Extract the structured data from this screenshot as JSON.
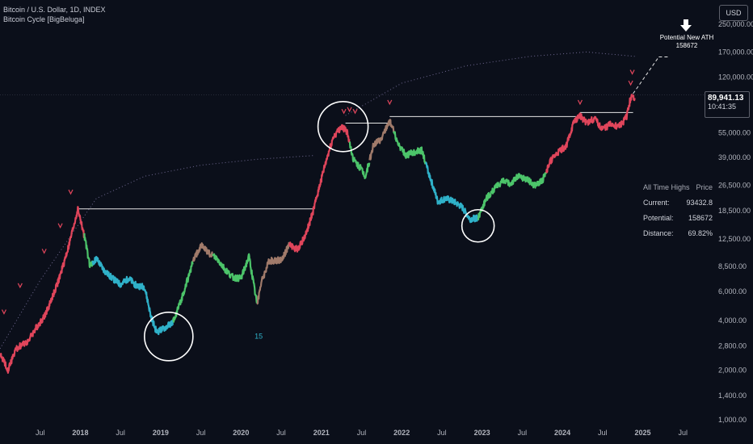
{
  "header": {
    "symbol_line": "Bitcoin / U.S. Dollar, 1D, INDEX",
    "indicator_line": "Bitcoin Cycle [BigBeluga]",
    "currency_button": "USD"
  },
  "price_tag": {
    "price": "89,941.13",
    "countdown": "10:41:35"
  },
  "potential_label": {
    "title": "Potential New ATH",
    "value": "158672"
  },
  "ath_table": {
    "header_left": "All Time Highs",
    "header_right": "Price",
    "rows": [
      {
        "label": "Current:",
        "value": "93432.8"
      },
      {
        "label": "Potential:",
        "value": "158672"
      },
      {
        "label": "Distance:",
        "value": "69.82%"
      }
    ]
  },
  "colors": {
    "background": "#0b0f1a",
    "bull_red": "#e0455b",
    "cool_blue": "#2fb1c9",
    "green": "#4cc46a",
    "neutral": "#a07a6a",
    "white_lines": "#e6e6e6",
    "dotted_curve": "#8a7fb0"
  },
  "chart_data": {
    "type": "line",
    "scale": "log",
    "ylim": [
      1000,
      300000
    ],
    "xlim": [
      2017.0,
      2025.9
    ],
    "y_ticks": [
      {
        "v": 250000,
        "label": "250,000.00"
      },
      {
        "v": 170000,
        "label": "170,000.00"
      },
      {
        "v": 120000,
        "label": "120,000.00"
      },
      {
        "v": 55000,
        "label": "55,000.00"
      },
      {
        "v": 39000,
        "label": "39,000.00"
      },
      {
        "v": 26500,
        "label": "26,500.00"
      },
      {
        "v": 18500,
        "label": "18,500.00"
      },
      {
        "v": 12500,
        "label": "12,500.00"
      },
      {
        "v": 8500,
        "label": "8,500.00"
      },
      {
        "v": 6000,
        "label": "6,000.00"
      },
      {
        "v": 4000,
        "label": "4,000.00"
      },
      {
        "v": 2800,
        "label": "2,800.00"
      },
      {
        "v": 2000,
        "label": "2,000.00"
      },
      {
        "v": 1400,
        "label": "1,400.00"
      },
      {
        "v": 1000,
        "label": "1,000.00"
      }
    ],
    "x_ticks": [
      {
        "t": 2017.5,
        "label": "Jul"
      },
      {
        "t": 2018.0,
        "label": "2018"
      },
      {
        "t": 2018.5,
        "label": "Jul"
      },
      {
        "t": 2019.0,
        "label": "2019"
      },
      {
        "t": 2019.5,
        "label": "Jul"
      },
      {
        "t": 2020.0,
        "label": "2020"
      },
      {
        "t": 2020.5,
        "label": "Jul"
      },
      {
        "t": 2021.0,
        "label": "2021"
      },
      {
        "t": 2021.5,
        "label": "Jul"
      },
      {
        "t": 2022.0,
        "label": "2022"
      },
      {
        "t": 2022.5,
        "label": "Jul"
      },
      {
        "t": 2023.0,
        "label": "2023"
      },
      {
        "t": 2023.5,
        "label": "Jul"
      },
      {
        "t": 2024.0,
        "label": "2024"
      },
      {
        "t": 2024.5,
        "label": "Jul"
      },
      {
        "t": 2025.0,
        "label": "2025"
      },
      {
        "t": 2025.5,
        "label": "Jul"
      }
    ],
    "series": [
      {
        "points": [
          [
            2017.0,
            2500
          ],
          [
            2017.1,
            2000
          ],
          [
            2017.2,
            2700
          ],
          [
            2017.35,
            3000
          ],
          [
            2017.45,
            3600
          ],
          [
            2017.55,
            4200
          ],
          [
            2017.65,
            5500
          ],
          [
            2017.75,
            7500
          ],
          [
            2017.85,
            11000
          ],
          [
            2017.97,
            19000
          ],
          [
            2018.05,
            13000
          ],
          [
            2018.12,
            8500
          ],
          [
            2018.2,
            9500
          ],
          [
            2018.3,
            8000
          ],
          [
            2018.4,
            7200
          ],
          [
            2018.5,
            6600
          ],
          [
            2018.6,
            7200
          ],
          [
            2018.7,
            6500
          ],
          [
            2018.8,
            6400
          ],
          [
            2018.88,
            4200
          ],
          [
            2018.95,
            3400
          ],
          [
            2019.05,
            3600
          ],
          [
            2019.15,
            3900
          ],
          [
            2019.25,
            5200
          ],
          [
            2019.4,
            9000
          ],
          [
            2019.5,
            11500
          ],
          [
            2019.6,
            10300
          ],
          [
            2019.7,
            9500
          ],
          [
            2019.8,
            8200
          ],
          [
            2019.9,
            7300
          ],
          [
            2020.0,
            7200
          ],
          [
            2020.1,
            9800
          ],
          [
            2020.2,
            5000
          ],
          [
            2020.25,
            6800
          ],
          [
            2020.35,
            9200
          ],
          [
            2020.5,
            9300
          ],
          [
            2020.6,
            11500
          ],
          [
            2020.7,
            10800
          ],
          [
            2020.8,
            13000
          ],
          [
            2020.9,
            18500
          ],
          [
            2021.0,
            29000
          ],
          [
            2021.08,
            40000
          ],
          [
            2021.15,
            52000
          ],
          [
            2021.25,
            60000
          ],
          [
            2021.32,
            56000
          ],
          [
            2021.4,
            38000
          ],
          [
            2021.5,
            33000
          ],
          [
            2021.55,
            30000
          ],
          [
            2021.65,
            47000
          ],
          [
            2021.75,
            50000
          ],
          [
            2021.85,
            66000
          ],
          [
            2021.95,
            48000
          ],
          [
            2022.05,
            40000
          ],
          [
            2022.15,
            42000
          ],
          [
            2022.25,
            43000
          ],
          [
            2022.35,
            30000
          ],
          [
            2022.45,
            21000
          ],
          [
            2022.55,
            22000
          ],
          [
            2022.65,
            21000
          ],
          [
            2022.75,
            19500
          ],
          [
            2022.85,
            16500
          ],
          [
            2022.95,
            16800
          ],
          [
            2023.05,
            22000
          ],
          [
            2023.15,
            25000
          ],
          [
            2023.25,
            28000
          ],
          [
            2023.35,
            27000
          ],
          [
            2023.45,
            30000
          ],
          [
            2023.55,
            29000
          ],
          [
            2023.65,
            26500
          ],
          [
            2023.75,
            28000
          ],
          [
            2023.85,
            37000
          ],
          [
            2023.95,
            42000
          ],
          [
            2024.05,
            46000
          ],
          [
            2024.15,
            65000
          ],
          [
            2024.22,
            70000
          ],
          [
            2024.3,
            63000
          ],
          [
            2024.4,
            67000
          ],
          [
            2024.5,
            58000
          ],
          [
            2024.6,
            62000
          ],
          [
            2024.7,
            60000
          ],
          [
            2024.75,
            63000
          ],
          [
            2024.8,
            69000
          ],
          [
            2024.85,
            90000
          ],
          [
            2024.88,
            90000
          ]
        ],
        "segments": [
          {
            "from": 2017.0,
            "to": 2018.05,
            "color": "red"
          },
          {
            "from": 2018.05,
            "to": 2018.15,
            "color": "green"
          },
          {
            "from": 2018.15,
            "to": 2019.15,
            "color": "blue"
          },
          {
            "from": 2019.15,
            "to": 2019.4,
            "color": "green"
          },
          {
            "from": 2019.4,
            "to": 2019.65,
            "color": "neutral"
          },
          {
            "from": 2019.65,
            "to": 2020.2,
            "color": "green"
          },
          {
            "from": 2020.2,
            "to": 2020.6,
            "color": "neutral"
          },
          {
            "from": 2020.6,
            "to": 2021.35,
            "color": "red"
          },
          {
            "from": 2021.35,
            "to": 2021.6,
            "color": "green"
          },
          {
            "from": 2021.6,
            "to": 2021.9,
            "color": "neutral"
          },
          {
            "from": 2021.9,
            "to": 2022.3,
            "color": "green"
          },
          {
            "from": 2022.3,
            "to": 2022.95,
            "color": "blue"
          },
          {
            "from": 2022.95,
            "to": 2023.8,
            "color": "green"
          },
          {
            "from": 2023.8,
            "to": 2024.9,
            "color": "red"
          }
        ]
      }
    ],
    "ath_lines": [
      {
        "from": 2017.97,
        "to": 2020.9,
        "price": 19000
      },
      {
        "from": 2021.3,
        "to": 2021.85,
        "price": 63000
      },
      {
        "from": 2021.85,
        "to": 2024.22,
        "price": 69000
      },
      {
        "from": 2024.22,
        "to": 2024.88,
        "price": 73000
      }
    ],
    "dotted_curves": [
      {
        "points": [
          [
            2017.0,
            2700
          ],
          [
            2017.5,
            7000
          ],
          [
            2018.2,
            22000
          ],
          [
            2018.8,
            30000
          ],
          [
            2019.5,
            35000
          ],
          [
            2020.2,
            38000
          ],
          [
            2020.9,
            40000
          ]
        ]
      },
      {
        "points": [
          [
            2021.3,
            70000
          ],
          [
            2022.0,
            110000
          ],
          [
            2022.8,
            140000
          ],
          [
            2023.6,
            160000
          ],
          [
            2024.3,
            170000
          ],
          [
            2024.9,
            160000
          ]
        ]
      }
    ],
    "projection": {
      "from": [
        2024.88,
        95000
      ],
      "to": [
        2025.2,
        158672
      ]
    },
    "cycle_circles": [
      {
        "cx": 2019.1,
        "price": 3200,
        "r": 30
      },
      {
        "cx": 2021.27,
        "price": 60000,
        "r": 31
      },
      {
        "cx": 2022.95,
        "price": 15000,
        "r": 20
      }
    ],
    "annotations": [
      {
        "t": 2020.22,
        "price": 3100,
        "text": "15"
      }
    ]
  }
}
